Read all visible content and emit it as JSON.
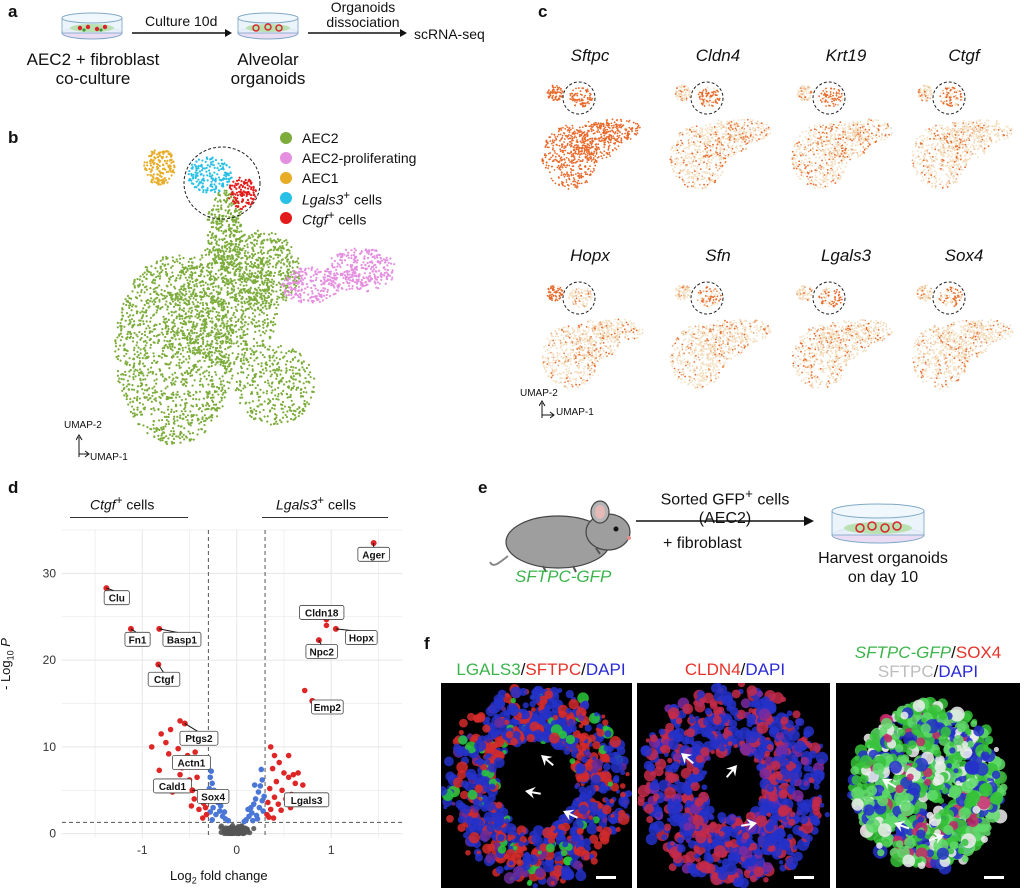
{
  "panels": {
    "a": "a",
    "b": "b",
    "c": "c",
    "d": "d",
    "e": "e",
    "f": "f"
  },
  "panel_a": {
    "culture_label": "Culture 10d",
    "dissociation_label_1": "Organoids",
    "dissociation_label_2": "dissociation",
    "scrna_label": "scRNA-seq",
    "coculture_label_1": "AEC2 + fibroblast",
    "coculture_label_2": "co-culture",
    "organoid_label_1": "Alveolar",
    "organoid_label_2": "organoids"
  },
  "panel_b": {
    "axis_y": "UMAP-2",
    "axis_x": "UMAP-1",
    "legend": [
      {
        "label": "AEC2",
        "color": "#7cac3a"
      },
      {
        "label": "AEC2-proliferating",
        "color": "#e58fe0"
      },
      {
        "label": "AEC1",
        "color": "#e7ad28"
      },
      {
        "label": "Lgals3",
        "suffix": " cells",
        "sup": "+",
        "color": "#27c0e6"
      },
      {
        "label": "Ctgf",
        "suffix": " cells",
        "sup": "+",
        "color": "#e41b1b"
      }
    ]
  },
  "panel_c": {
    "genes": [
      "Sftpc",
      "Cldn4",
      "Krt19",
      "Ctgf",
      "Hopx",
      "Sfn",
      "Lgals3",
      "Sox4"
    ],
    "axis_y": "UMAP-2",
    "axis_x": "UMAP-1"
  },
  "panel_d": {
    "left_group": "Ctgf",
    "left_group_suffix": " cells",
    "right_group": "Lgals3",
    "right_group_suffix": " cells",
    "sup": "+",
    "ylabel_prefix": "- Log",
    "ylabel_sub": "10",
    "ylabel_var": "P",
    "xlabel_prefix": "Log",
    "xlabel_sub": "2",
    "xlabel_suffix": " fold change"
  },
  "chart_data": {
    "type": "scatter",
    "title": "",
    "xlabel": "Log2 fold change",
    "ylabel": "-Log10 P",
    "xlim": [
      -1.85,
      1.75
    ],
    "ylim": [
      -0.5,
      35
    ],
    "x_ticks": [
      -1,
      0,
      1
    ],
    "y_ticks": [
      0,
      10,
      20,
      30
    ],
    "x_tick_labels": [
      "-1",
      "0",
      "1"
    ],
    "y_tick_labels": [
      "0",
      "10",
      "20",
      "30"
    ],
    "thresholds": {
      "x": [
        -0.3,
        0.3
      ],
      "y": 1.3
    },
    "labeled_points": [
      {
        "gene": "Ager",
        "x": 1.45,
        "y": 33.5,
        "lx": 1.45,
        "ly": 32.2
      },
      {
        "gene": "Clu",
        "x": -1.38,
        "y": 28.3,
        "lx": -1.27,
        "ly": 27.2
      },
      {
        "gene": "Cldn18",
        "x": 0.95,
        "y": 24.7,
        "lx": 0.9,
        "ly": 25.5
      },
      {
        "gene": "Fn1",
        "x": -1.12,
        "y": 23.6,
        "lx": -1.05,
        "ly": 22.4
      },
      {
        "gene": "Basp1",
        "x": -0.82,
        "y": 23.6,
        "lx": -0.58,
        "ly": 22.4
      },
      {
        "gene": "Hopx",
        "x": 1.05,
        "y": 23.6,
        "lx": 1.32,
        "ly": 22.6
      },
      {
        "gene": "Npc2",
        "x": 0.87,
        "y": 22.3,
        "lx": 0.9,
        "ly": 21.0
      },
      {
        "gene": "Ctgf",
        "x": -0.83,
        "y": 19.5,
        "lx": -0.77,
        "ly": 17.8
      },
      {
        "gene": "Emp2",
        "x": 0.8,
        "y": 15.3,
        "lx": 0.96,
        "ly": 14.6
      },
      {
        "gene": "Ptgs2",
        "x": -0.55,
        "y": 12.7,
        "lx": -0.4,
        "ly": 11.0
      },
      {
        "gene": "Actn1",
        "x": -0.55,
        "y": 8.6,
        "lx": -0.48,
        "ly": 8.2
      },
      {
        "gene": "Cald1",
        "x": -0.71,
        "y": 5.7,
        "lx": -0.68,
        "ly": 5.5
      },
      {
        "gene": "Sox4",
        "x": -0.47,
        "y": 5.0,
        "lx": -0.25,
        "ly": 4.3
      },
      {
        "gene": "Lgals3",
        "x": 0.58,
        "y": 4.5,
        "lx": 0.74,
        "ly": 3.9
      }
    ],
    "red_points": [
      [
        -0.6,
        13.0
      ],
      [
        -0.7,
        12.0
      ],
      [
        -0.8,
        11.5
      ],
      [
        -0.9,
        10.0
      ],
      [
        -0.75,
        10.5
      ],
      [
        -0.62,
        9.8
      ],
      [
        -0.52,
        9.0
      ],
      [
        -0.82,
        7.3
      ],
      [
        -0.6,
        6.8
      ],
      [
        -0.5,
        6.2
      ],
      [
        -0.55,
        5.5
      ],
      [
        -0.42,
        6.5
      ],
      [
        -0.38,
        4.8
      ],
      [
        -0.45,
        4.0
      ],
      [
        -0.35,
        3.5
      ],
      [
        -0.4,
        2.8
      ],
      [
        -0.32,
        2.2
      ],
      [
        -0.36,
        1.8
      ],
      [
        -0.33,
        3.0
      ],
      [
        -0.48,
        3.2
      ],
      [
        -0.68,
        4.8
      ],
      [
        -0.58,
        7.6
      ],
      [
        -0.44,
        9.4
      ],
      [
        -0.72,
        9.2
      ],
      [
        -0.4,
        8.0
      ],
      [
        0.38,
        7.5
      ],
      [
        0.45,
        8.2
      ],
      [
        0.5,
        7.0
      ],
      [
        0.55,
        6.5
      ],
      [
        0.6,
        6.8
      ],
      [
        0.62,
        5.8
      ],
      [
        0.42,
        6.0
      ],
      [
        0.35,
        5.2
      ],
      [
        0.48,
        5.0
      ],
      [
        0.4,
        4.2
      ],
      [
        0.33,
        3.6
      ],
      [
        0.36,
        2.8
      ],
      [
        0.32,
        2.2
      ],
      [
        0.44,
        3.4
      ],
      [
        0.52,
        4.0
      ],
      [
        0.34,
        1.9
      ],
      [
        0.65,
        7.0
      ],
      [
        0.7,
        5.6
      ],
      [
        0.47,
        2.7
      ],
      [
        0.39,
        1.8
      ],
      [
        0.57,
        3.0
      ],
      [
        0.4,
        9.0
      ],
      [
        0.36,
        10.0
      ],
      [
        0.55,
        9.0
      ],
      [
        0.72,
        16.5
      ],
      [
        0.95,
        24.0
      ]
    ],
    "blue_points": [
      [
        -0.28,
        6.5
      ],
      [
        -0.26,
        5.8
      ],
      [
        -0.24,
        5.0
      ],
      [
        -0.22,
        4.2
      ],
      [
        -0.2,
        3.6
      ],
      [
        -0.25,
        3.0
      ],
      [
        -0.18,
        2.6
      ],
      [
        -0.15,
        2.0
      ],
      [
        -0.12,
        1.7
      ],
      [
        -0.22,
        2.2
      ],
      [
        -0.28,
        2.5
      ],
      [
        -0.3,
        4.4
      ],
      [
        -0.17,
        3.2
      ],
      [
        -0.09,
        1.5
      ],
      [
        -0.27,
        7.2
      ],
      [
        -0.29,
        5.2
      ],
      [
        -0.19,
        4.8
      ],
      [
        -0.23,
        3.9
      ],
      [
        -0.13,
        2.5
      ],
      [
        -0.26,
        1.6
      ],
      [
        0.27,
        6.2
      ],
      [
        0.25,
        5.5
      ],
      [
        0.23,
        4.8
      ],
      [
        0.2,
        4.0
      ],
      [
        0.18,
        3.4
      ],
      [
        0.24,
        3.0
      ],
      [
        0.16,
        2.4
      ],
      [
        0.13,
        2.0
      ],
      [
        0.1,
        1.6
      ],
      [
        0.21,
        2.1
      ],
      [
        0.28,
        2.6
      ],
      [
        0.29,
        4.3
      ],
      [
        0.15,
        3.0
      ],
      [
        0.08,
        1.4
      ],
      [
        0.26,
        7.4
      ],
      [
        0.19,
        5.6
      ],
      [
        0.12,
        2.8
      ],
      [
        0.22,
        1.7
      ],
      [
        0.27,
        3.8
      ],
      [
        0.17,
        1.5
      ]
    ]
  },
  "panel_e": {
    "sorted_label_1": "Sorted GFP",
    "sorted_sup": "+",
    "sorted_label_1_suffix": " cells",
    "sorted_label_2": "(AEC2)",
    "fibro_label": "+ fibroblast",
    "mouse_label": "SFTPC-GFP",
    "harvest_label_1": "Harvest organoids",
    "harvest_label_2": "on day 10"
  },
  "panel_f": {
    "titles": [
      [
        {
          "t": "LGALS3",
          "c": "#3cb44b",
          "i": false
        },
        {
          "t": "/",
          "c": "#111",
          "i": false
        },
        {
          "t": "SFTPC",
          "c": "#e6332a",
          "i": false
        },
        {
          "t": "/",
          "c": "#111",
          "i": false
        },
        {
          "t": "DAPI",
          "c": "#2b2bd6",
          "i": false
        }
      ],
      [
        {
          "t": "CLDN4",
          "c": "#e6332a",
          "i": false
        },
        {
          "t": "/",
          "c": "#111",
          "i": false
        },
        {
          "t": "DAPI",
          "c": "#2b2bd6",
          "i": false
        }
      ],
      [
        {
          "t": "SFTPC-GFP",
          "c": "#3cb44b",
          "i": true
        },
        {
          "t": "/",
          "c": "#111",
          "i": false
        },
        {
          "t": "SOX4",
          "c": "#e6332a",
          "i": false
        }
      ],
      [
        {
          "t": "SFTPC",
          "c": "#bdbdbd",
          "i": false
        },
        {
          "t": "/",
          "c": "#111",
          "i": false
        },
        {
          "t": "DAPI",
          "c": "#2b2bd6",
          "i": false
        }
      ]
    ]
  },
  "colors": {
    "aec2": "#7cac3a",
    "prolif": "#e58fe0",
    "aec1": "#e7ad28",
    "lgals3": "#27c0e6",
    "ctgf": "#e41b1b",
    "feature_high": "#e8692a",
    "feature_low": "#f4dfc0",
    "volcano_red": "#de2626",
    "volcano_blue": "#4a76d6",
    "volcano_grey": "#555555"
  }
}
